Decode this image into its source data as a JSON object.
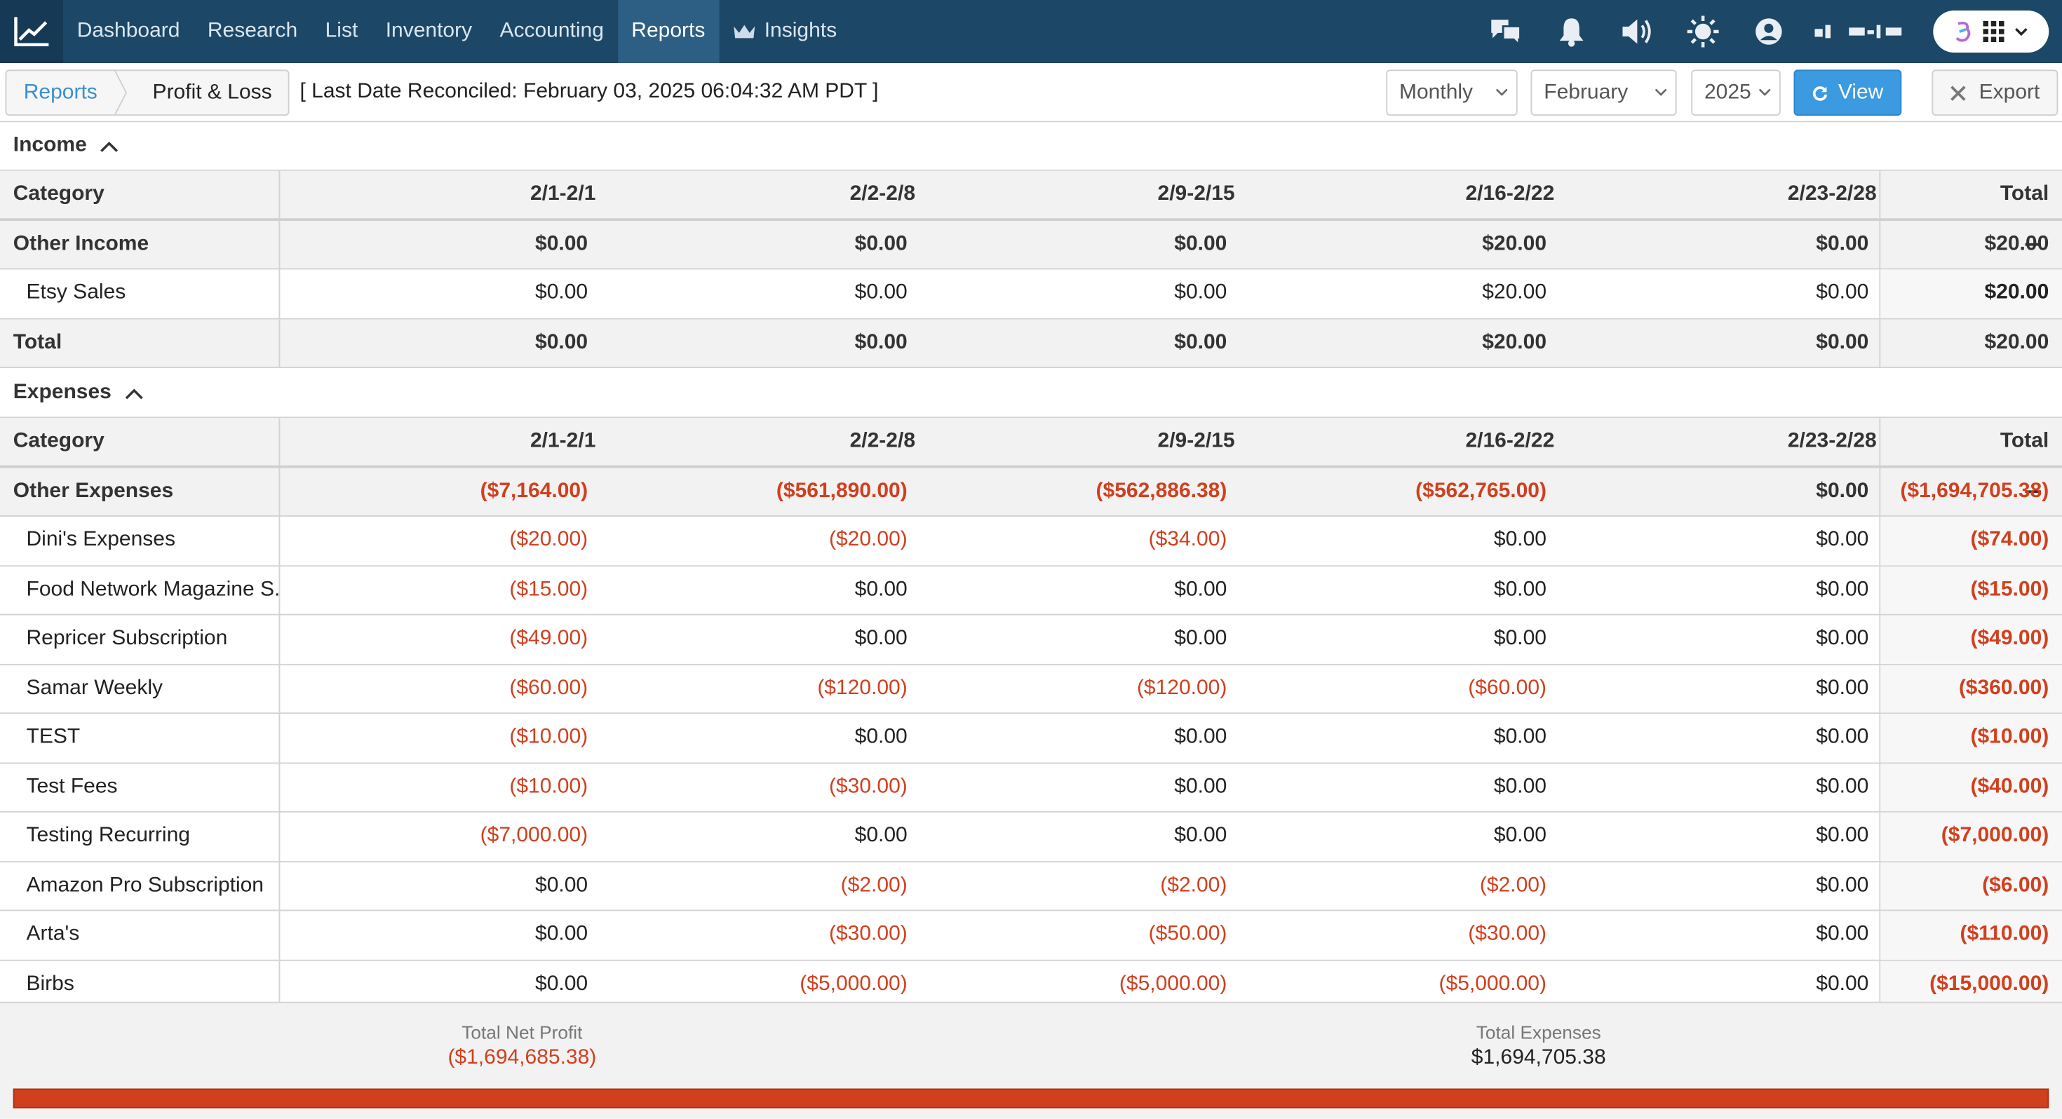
{
  "colors": {
    "nav_bg": "#1c4766",
    "accent": "#3b9ae0",
    "negative": "#d0401e"
  },
  "nav": {
    "items": [
      {
        "label": "Dashboard"
      },
      {
        "label": "Research"
      },
      {
        "label": "List"
      },
      {
        "label": "Inventory"
      },
      {
        "label": "Accounting"
      },
      {
        "label": "Reports"
      },
      {
        "label": "Insights"
      }
    ],
    "active": "Reports",
    "icons": [
      "chat-icon",
      "bell-icon",
      "speaker-icon",
      "brightness-icon",
      "user-icon",
      "app-grid-icon"
    ]
  },
  "toolbar": {
    "breadcrumb_root": "Reports",
    "breadcrumb_current": "Profit & Loss",
    "reconciled": "[ Last Date Reconciled: February 03, 2025 06:04:32 AM PDT ]",
    "period": "Monthly",
    "month": "February",
    "year": "2025",
    "view_label": "View",
    "export_label": "Export"
  },
  "income": {
    "title": "Income",
    "columns": [
      "Category",
      "2/1-2/1",
      "2/2-2/8",
      "2/9-2/15",
      "2/16-2/22",
      "2/23-2/28",
      "Total"
    ],
    "group": {
      "name": "Other Income",
      "values": [
        "$0.00",
        "$0.00",
        "$0.00",
        "$20.00",
        "$0.00",
        "$20.00"
      ]
    },
    "rows": [
      {
        "name": "Etsy Sales",
        "values": [
          "$0.00",
          "$0.00",
          "$0.00",
          "$20.00",
          "$0.00",
          "$20.00"
        ]
      }
    ],
    "total": {
      "name": "Total",
      "values": [
        "$0.00",
        "$0.00",
        "$0.00",
        "$20.00",
        "$0.00",
        "$20.00"
      ]
    }
  },
  "expenses": {
    "title": "Expenses",
    "columns": [
      "Category",
      "2/1-2/1",
      "2/2-2/8",
      "2/9-2/15",
      "2/16-2/22",
      "2/23-2/28",
      "Total"
    ],
    "group": {
      "name": "Other Expenses",
      "values": [
        "($7,164.00)",
        "($561,890.00)",
        "($562,886.38)",
        "($562,765.00)",
        "$0.00",
        "($1,694,705.38)"
      ]
    },
    "rows": [
      {
        "name": "Dini's Expenses",
        "values": [
          "($20.00)",
          "($20.00)",
          "($34.00)",
          "$0.00",
          "$0.00",
          "($74.00)"
        ]
      },
      {
        "name": "Food Network Magazine S...",
        "values": [
          "($15.00)",
          "$0.00",
          "$0.00",
          "$0.00",
          "$0.00",
          "($15.00)"
        ]
      },
      {
        "name": "Repricer Subscription",
        "values": [
          "($49.00)",
          "$0.00",
          "$0.00",
          "$0.00",
          "$0.00",
          "($49.00)"
        ]
      },
      {
        "name": "Samar Weekly",
        "values": [
          "($60.00)",
          "($120.00)",
          "($120.00)",
          "($60.00)",
          "$0.00",
          "($360.00)"
        ]
      },
      {
        "name": "TEST",
        "values": [
          "($10.00)",
          "$0.00",
          "$0.00",
          "$0.00",
          "$0.00",
          "($10.00)"
        ]
      },
      {
        "name": "Test Fees",
        "values": [
          "($10.00)",
          "($30.00)",
          "$0.00",
          "$0.00",
          "$0.00",
          "($40.00)"
        ]
      },
      {
        "name": "Testing Recurring",
        "values": [
          "($7,000.00)",
          "$0.00",
          "$0.00",
          "$0.00",
          "$0.00",
          "($7,000.00)"
        ]
      },
      {
        "name": "Amazon Pro Subscription",
        "values": [
          "$0.00",
          "($2.00)",
          "($2.00)",
          "($2.00)",
          "$0.00",
          "($6.00)"
        ]
      },
      {
        "name": "Arta's",
        "values": [
          "$0.00",
          "($30.00)",
          "($50.00)",
          "($30.00)",
          "$0.00",
          "($110.00)"
        ]
      },
      {
        "name": "Birbs",
        "values": [
          "$0.00",
          "($5,000.00)",
          "($5,000.00)",
          "($5,000.00)",
          "$0.00",
          "($15,000.00)"
        ]
      }
    ]
  },
  "summary": {
    "net_profit_label": "Total Net Profit",
    "net_profit_value": "($1,694,685.38)",
    "expenses_label": "Total Expenses",
    "expenses_value": "$1,694,705.38",
    "expense_ratio": 1.0
  }
}
